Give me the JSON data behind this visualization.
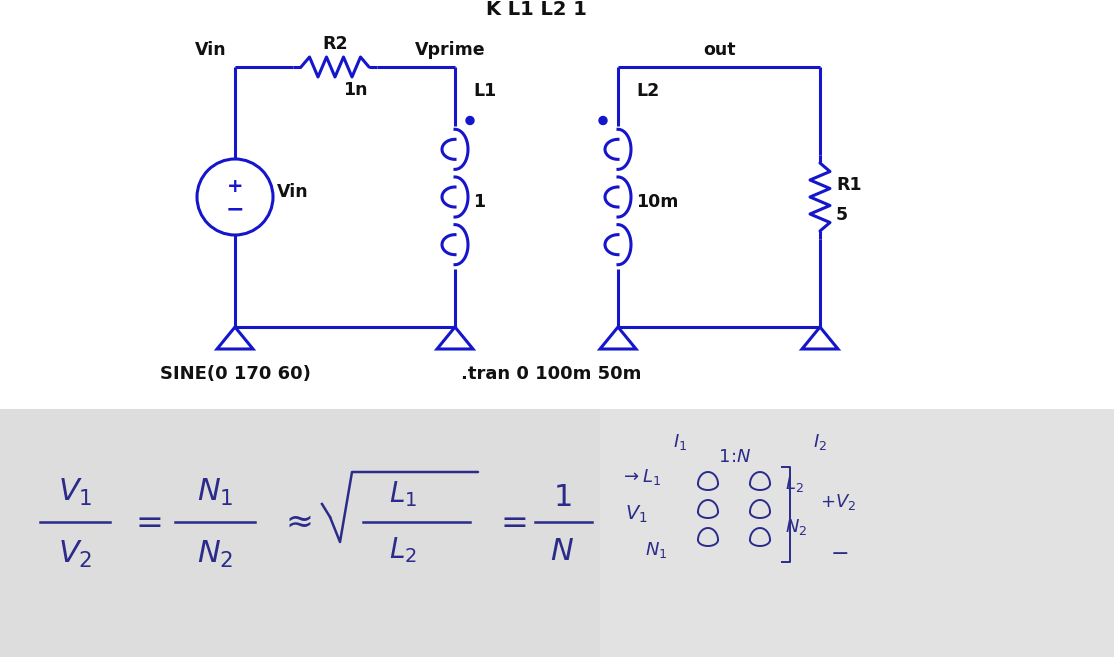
{
  "bg_color": "#ffffff",
  "circuit_color": "#1515cc",
  "text_color": "#111111",
  "formula_color": "#2b2b8a",
  "k_label": "K L1 L2 1",
  "sine_label": "SINE(0 170 60)",
  "tran_label": ".tran 0 100m 50m",
  "vin_wire_label": "Vin",
  "vin_source_label": "Vin",
  "r2_label": "R2",
  "r2_val": "1n",
  "vprime_label": "Vprime",
  "l1_label": "L1",
  "l1_val": "1",
  "l2_label": "L2",
  "l2_val": "10m",
  "out_label": "out",
  "r1_label": "R1",
  "r1_val": "5",
  "panel_color": "#d8d8d8"
}
